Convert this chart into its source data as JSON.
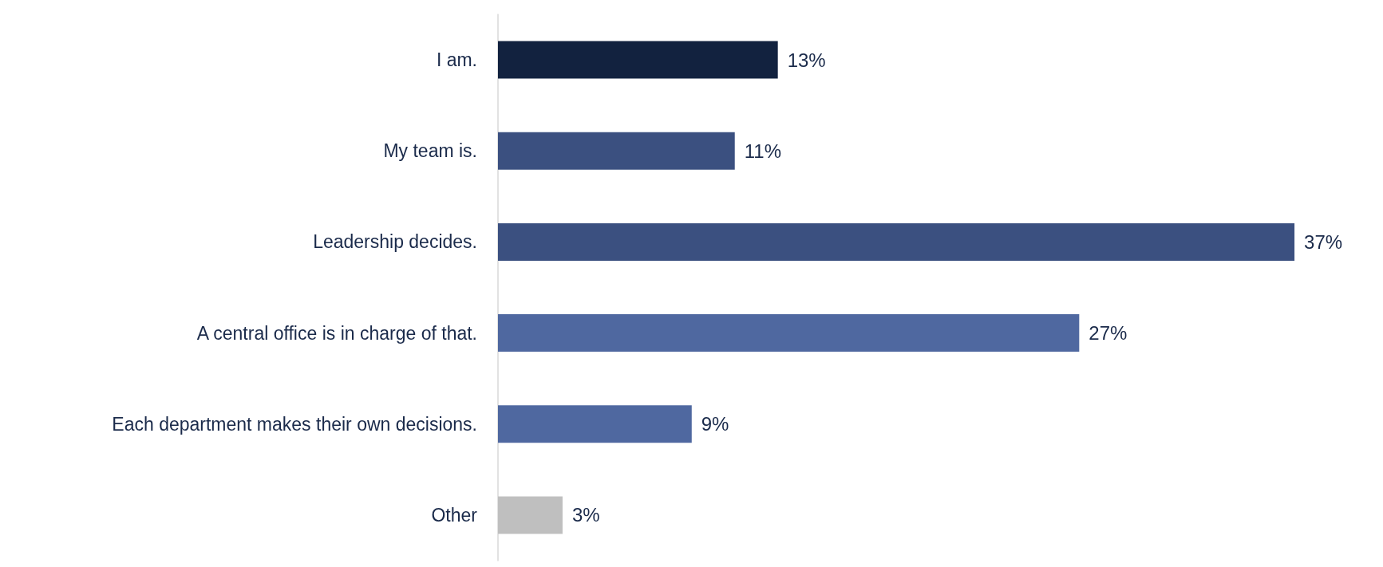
{
  "chart_data": {
    "type": "bar",
    "orientation": "horizontal",
    "categories": [
      "I am.",
      "My team is.",
      "Leadership decides.",
      "A central office is in charge of that.",
      "Each department makes their own decisions.",
      "Other"
    ],
    "values": [
      13,
      11,
      37,
      27,
      9,
      3
    ],
    "colors": [
      "#12223f",
      "#3b5080",
      "#3b5080",
      "#4f68a0",
      "#4f68a0",
      "#bfbfbf"
    ],
    "value_labels": [
      "13%",
      "11%",
      "37%",
      "27%",
      "9%",
      "3%"
    ],
    "tick_labels": "y"
  }
}
